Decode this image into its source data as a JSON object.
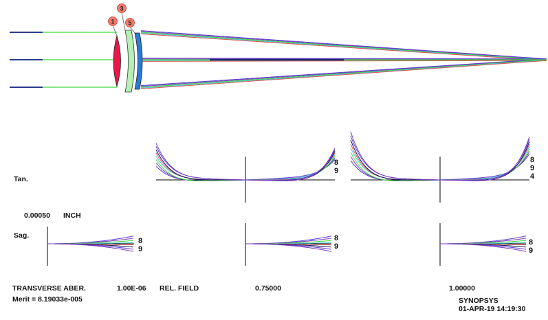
{
  "colors": {
    "background": "#ffffff",
    "axis": "#000000",
    "lens_1": "#e8194a",
    "lens_3": "#b6f0b6",
    "lens_5": "#2a7ad8",
    "element_badge": "#f27a6a",
    "rays": [
      "#5a3ad8",
      "#7a3ab8",
      "#3ad83a",
      "#40c0d0",
      "#e0504a",
      "#101060"
    ]
  },
  "lens_elements": [
    {
      "number": "1"
    },
    {
      "number": "3"
    },
    {
      "number": "5"
    }
  ],
  "plot": {
    "row_labels": {
      "tan": "Tan.",
      "sag": "Sag."
    },
    "scale": "0.00050",
    "scale_unit": "INCH",
    "wavelength_labels": {
      "tan_1": [
        "8",
        "9"
      ],
      "tan_2": [
        "8",
        "9",
        "4"
      ],
      "sag_0": [
        "8",
        "9"
      ],
      "sag_1": [
        "8",
        "9"
      ],
      "sag_2": [
        "8",
        "9"
      ]
    }
  },
  "footer": {
    "title": "TRANSVERSE ABER.",
    "merit": "Merit = 8.19033e-005",
    "value": "1.00E-06",
    "rel_field_label": "REL. FIELD",
    "field_1": "0.75000",
    "field_2": "1.00000",
    "software": "SYNOPSYS",
    "timestamp": "01-APR-19  14:19:30"
  }
}
